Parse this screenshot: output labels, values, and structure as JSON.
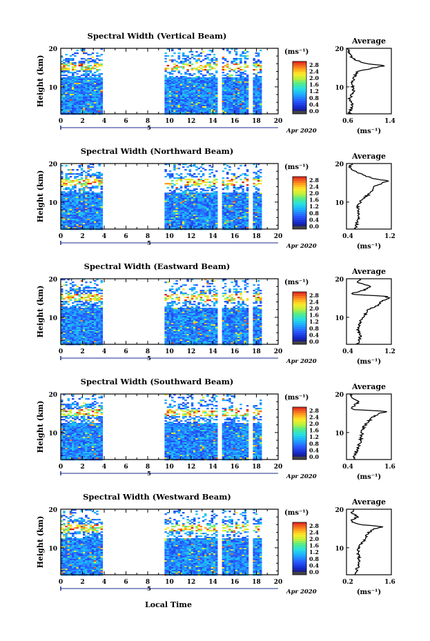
{
  "figure": {
    "xlabel": "Local Time",
    "date_label": "Apr 2020",
    "day_label": "5",
    "colorbar_unit": "(ms⁻¹)",
    "avg_title": "Average",
    "avg_unit": "(ms⁻¹)"
  },
  "chart_data": [
    {
      "type": "heatmap",
      "title": "Spectral Width (Vertical Beam)",
      "ylabel": "Height (km)",
      "xlim": [
        0,
        20
      ],
      "ylim": [
        3,
        20
      ],
      "x_ticks": [
        0,
        2,
        4,
        6,
        8,
        10,
        12,
        14,
        16,
        18,
        20
      ],
      "y_ticks": [
        20,
        10
      ],
      "data_gaps_hours": [
        [
          3.8,
          9.4
        ],
        [
          14.4,
          14.7
        ],
        [
          17.1,
          17.6
        ]
      ],
      "colorbar": {
        "min": 0.0,
        "max": 3.0,
        "ticks": [
          "2.8",
          "2.4",
          "2.0",
          "1.6",
          "1.2",
          "0.8",
          "0.4",
          "0.0"
        ]
      },
      "average_profile": {
        "xlim": [
          0.6,
          1.4
        ],
        "x_ticks": [
          "0.6",
          "1.4"
        ],
        "heights_km": [
          3,
          5,
          7,
          9,
          11,
          13,
          14,
          15,
          15.5,
          16,
          17,
          18,
          19,
          20
        ],
        "values": [
          0.65,
          0.7,
          0.66,
          0.72,
          0.7,
          0.75,
          0.8,
          1.1,
          1.3,
          0.95,
          0.75,
          0.68,
          0.65,
          0.62
        ]
      }
    },
    {
      "type": "heatmap",
      "title": "Spectral Width (Northward Beam)",
      "ylabel": "Height (km)",
      "xlim": [
        0,
        20
      ],
      "ylim": [
        3,
        20
      ],
      "x_ticks": [
        0,
        2,
        4,
        6,
        8,
        10,
        12,
        14,
        16,
        18,
        20
      ],
      "y_ticks": [
        20,
        10
      ],
      "data_gaps_hours": [
        [
          3.8,
          9.4
        ],
        [
          14.4,
          14.7
        ],
        [
          17.1,
          17.6
        ]
      ],
      "colorbar": {
        "min": 0.0,
        "max": 3.0,
        "ticks": [
          "2.8",
          "2.4",
          "2.0",
          "1.6",
          "1.2",
          "0.8",
          "0.4",
          "0.0"
        ]
      },
      "average_profile": {
        "xlim": [
          0.4,
          1.2
        ],
        "x_ticks": [
          "0.4",
          "1.2"
        ],
        "heights_km": [
          3,
          5,
          7,
          9,
          11,
          12,
          13,
          14,
          15,
          15.5,
          16,
          17,
          18,
          19,
          20
        ],
        "values": [
          0.55,
          0.6,
          0.62,
          0.6,
          0.7,
          0.8,
          0.85,
          0.9,
          1.05,
          1.15,
          0.9,
          0.7,
          0.55,
          0.45,
          0.5
        ]
      }
    },
    {
      "type": "heatmap",
      "title": "Spectral Width (Eastward Beam)",
      "ylabel": "Height (km)",
      "xlim": [
        0,
        20
      ],
      "ylim": [
        3,
        20
      ],
      "x_ticks": [
        0,
        2,
        4,
        6,
        8,
        10,
        12,
        14,
        16,
        18,
        20
      ],
      "y_ticks": [
        20,
        10
      ],
      "data_gaps_hours": [
        [
          3.8,
          9.4
        ],
        [
          14.4,
          14.7
        ],
        [
          17.1,
          17.6
        ]
      ],
      "colorbar": {
        "min": 0.0,
        "max": 3.0,
        "ticks": [
          "2.8",
          "2.4",
          "2.0",
          "1.6",
          "1.2",
          "0.8",
          "0.4",
          "0.0"
        ]
      },
      "average_profile": {
        "xlim": [
          0.4,
          1.2
        ],
        "x_ticks": [
          "0.4",
          "1.2"
        ],
        "heights_km": [
          3,
          5,
          7,
          9,
          11,
          12,
          13,
          14,
          15,
          15.5,
          16,
          17,
          18,
          19,
          20
        ],
        "values": [
          0.6,
          0.65,
          0.6,
          0.65,
          0.75,
          0.8,
          0.95,
          1.0,
          1.15,
          1.1,
          0.45,
          0.7,
          0.85,
          0.6,
          0.65
        ]
      }
    },
    {
      "type": "heatmap",
      "title": "Spectral Width (Southward Beam)",
      "ylabel": "Height (km)",
      "xlim": [
        0,
        20
      ],
      "ylim": [
        3,
        20
      ],
      "x_ticks": [
        0,
        2,
        4,
        6,
        8,
        10,
        12,
        14,
        16,
        18,
        20
      ],
      "y_ticks": [
        20,
        10
      ],
      "data_gaps_hours": [
        [
          3.8,
          9.4
        ],
        [
          14.4,
          14.7
        ],
        [
          17.1,
          17.6
        ]
      ],
      "colorbar": {
        "min": 0.0,
        "max": 3.0,
        "ticks": [
          "2.8",
          "2.4",
          "2.0",
          "1.6",
          "1.2",
          "0.8",
          "0.4",
          "0.0"
        ]
      },
      "average_profile": {
        "xlim": [
          0.4,
          1.6
        ],
        "x_ticks": [
          "0.4",
          "1.6"
        ],
        "heights_km": [
          3,
          5,
          7,
          9,
          11,
          12,
          13,
          14,
          15,
          15.5,
          16,
          17,
          18,
          19,
          20
        ],
        "values": [
          0.6,
          0.65,
          0.75,
          0.8,
          0.85,
          0.9,
          1.0,
          1.1,
          1.3,
          1.5,
          0.55,
          0.6,
          0.75,
          0.55,
          0.5
        ]
      }
    },
    {
      "type": "heatmap",
      "title": "Spectral Width (Westward Beam)",
      "ylabel": "Height (km)",
      "xlim": [
        0,
        20
      ],
      "ylim": [
        3,
        20
      ],
      "x_ticks": [
        0,
        2,
        4,
        6,
        8,
        10,
        12,
        14,
        16,
        18,
        20
      ],
      "y_ticks": [
        20,
        10
      ],
      "data_gaps_hours": [
        [
          3.8,
          9.4
        ],
        [
          14.4,
          14.7
        ],
        [
          17.1,
          17.6
        ]
      ],
      "colorbar": {
        "min": 0.0,
        "max": 3.0,
        "ticks": [
          "2.8",
          "2.4",
          "2.0",
          "1.6",
          "1.2",
          "0.8",
          "0.4",
          "0.0"
        ]
      },
      "average_profile": {
        "xlim": [
          0.2,
          1.6
        ],
        "x_ticks": [
          "0.2",
          "1.6"
        ],
        "heights_km": [
          3,
          5,
          7,
          9,
          11,
          12,
          13,
          14,
          15,
          15.5,
          16,
          17,
          18,
          19,
          20
        ],
        "values": [
          0.5,
          0.55,
          0.6,
          0.55,
          0.65,
          0.75,
          0.8,
          0.9,
          1.1,
          1.35,
          0.6,
          0.3,
          0.55,
          0.35,
          0.4
        ]
      }
    }
  ]
}
